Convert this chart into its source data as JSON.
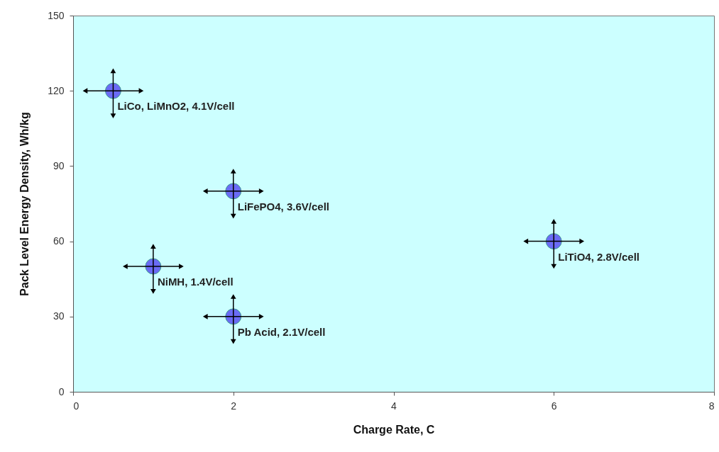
{
  "chart_data": {
    "type": "scatter",
    "xlabel": "Charge Rate, C",
    "ylabel": "Pack Level Energy Density, Wh/kg",
    "marker": "circle",
    "x": [
      0.5,
      2,
      1,
      2,
      6
    ],
    "series": [
      {
        "color": "#6b6bf5",
        "values": [
          120,
          80,
          50,
          30,
          60
        ],
        "errors": [
          [
            110,
            128
          ],
          [
            70,
            88
          ],
          [
            40,
            58
          ],
          [
            20,
            38
          ],
          [
            50,
            68
          ]
        ],
        "xerrors": [
          [
            0.15,
            0.85
          ],
          [
            1.65,
            2.35
          ],
          [
            0.65,
            1.35
          ],
          [
            1.65,
            2.35
          ],
          [
            5.65,
            6.35
          ]
        ]
      }
    ],
    "xlim": [
      0,
      8
    ],
    "xticks": [
      0,
      2,
      4,
      6,
      8
    ],
    "ylim": [
      0,
      150
    ],
    "yticks": [
      0,
      30,
      60,
      90,
      120,
      150
    ],
    "annotations": [
      {
        "text": "LiCo, LiMnO2, 4.1V/cell",
        "x": 0.5,
        "y": 120
      },
      {
        "text": "LiFePO4, 3.6V/cell",
        "x": 2,
        "y": 80
      },
      {
        "text": "NiMH, 1.4V/cell",
        "x": 1,
        "y": 50
      },
      {
        "text": "Pb Acid, 2.1V/cell",
        "x": 2,
        "y": 30
      },
      {
        "text": "LiTiO4, 2.8V/cell",
        "x": 6,
        "y": 60
      }
    ]
  }
}
